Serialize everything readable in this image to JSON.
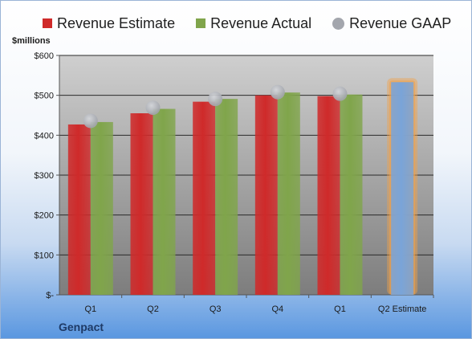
{
  "legend": {
    "estimate": "Revenue Estimate",
    "actual": "Revenue Actual",
    "gaap": "Revenue GAAP"
  },
  "unit_label": "$millions",
  "company": "Genpact",
  "colors": {
    "estimate": "#cf2a2a",
    "actual": "#80a54b",
    "gaap": "#a3a6ad",
    "forecast": "#7aa4d8",
    "forecast_glow": "#f2a14a",
    "plot_top": "#cfcfcf",
    "plot_bottom": "#7d7d7d"
  },
  "chart_data": {
    "type": "bar",
    "categories": [
      "Q1",
      "Q2",
      "Q3",
      "Q4",
      "Q1",
      "Q2 Estimate"
    ],
    "series": [
      {
        "name": "Revenue Estimate",
        "values": [
          427,
          455,
          484,
          500,
          498,
          null
        ]
      },
      {
        "name": "Revenue Actual",
        "values": [
          433,
          466,
          491,
          507,
          502,
          533
        ]
      },
      {
        "name": "Revenue GAAP",
        "type": "scatter",
        "values": [
          436,
          469,
          491,
          508,
          504,
          null
        ]
      }
    ],
    "highlight": {
      "category": "Q2 Estimate",
      "note": "forecast"
    },
    "yticks": [
      "$-",
      "$100",
      "$200",
      "$300",
      "$400",
      "$500",
      "$600"
    ],
    "ylim": [
      0,
      600
    ],
    "ylabel": "$millions",
    "grid": true,
    "legend_position": "top"
  }
}
